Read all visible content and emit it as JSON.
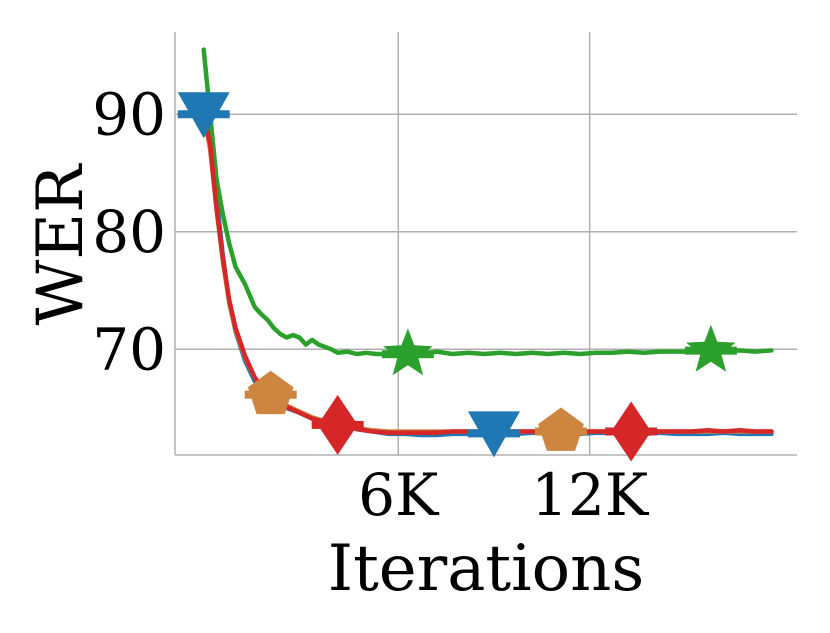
{
  "chart_data": {
    "type": "line",
    "xlabel": "Iterations",
    "ylabel": "WER",
    "xlim": [
      -700,
      18800
    ],
    "ylim": [
      61,
      97
    ],
    "grid": true,
    "x_ticks": [
      {
        "value": 6300,
        "label": "6K"
      },
      {
        "value": 12300,
        "label": "12K"
      }
    ],
    "y_ticks": [
      {
        "value": 70,
        "label": "70"
      },
      {
        "value": 80,
        "label": "80"
      },
      {
        "value": 90,
        "label": "90"
      }
    ],
    "series": [
      {
        "color": "#1f77b4",
        "marker": "triangle-down",
        "marker_x": [
          200,
          9300
        ],
        "x": [
          200,
          400,
          600,
          800,
          1000,
          1200,
          1500,
          1800,
          2100,
          2400,
          2800,
          3200,
          3600,
          4000,
          4500,
          5000,
          5500,
          6000,
          6500,
          7000,
          7500,
          8000,
          8500,
          9000,
          9500,
          10000,
          10500,
          11000,
          11500,
          12000,
          12500,
          13000,
          13500,
          14000,
          14500,
          15000,
          15500,
          16000,
          16500,
          17000,
          17500,
          18000
        ],
        "y": [
          90,
          88,
          83,
          78,
          74,
          71.5,
          69,
          67.3,
          66.3,
          65.6,
          65,
          64.6,
          64.1,
          63.8,
          63.5,
          63.2,
          63,
          62.8,
          62.8,
          62.7,
          62.7,
          62.8,
          62.8,
          62.9,
          62.8,
          62.8,
          62.9,
          62.9,
          62.8,
          62.8,
          62.9,
          62.9,
          62.8,
          62.8,
          62.9,
          62.8,
          62.8,
          62.8,
          62.9,
          62.8,
          62.8,
          62.8
        ]
      },
      {
        "color": "#cd853f",
        "marker": "pentagon",
        "marker_x": [
          2300,
          11400
        ],
        "x": [
          200,
          400,
          600,
          800,
          1000,
          1200,
          1500,
          1800,
          2100,
          2400,
          2800,
          3200,
          3600,
          4000,
          4500,
          5000,
          5500,
          6000,
          6500,
          7000,
          7500,
          8000,
          8500,
          9000,
          9500,
          10000,
          10500,
          11000,
          11500,
          12000,
          12500,
          13000,
          13500,
          14000,
          14500,
          15000,
          15500,
          16000,
          16500,
          17000,
          17500,
          18000
        ],
        "y": [
          90,
          87,
          82,
          77.5,
          74,
          71.6,
          69.3,
          67.6,
          66.6,
          65.9,
          65.2,
          64.7,
          64.2,
          63.9,
          63.6,
          63.3,
          63.1,
          63,
          63,
          63,
          63,
          63,
          63,
          63,
          63,
          63,
          63,
          63,
          63,
          63,
          63,
          63,
          63,
          63,
          63,
          63,
          63,
          63,
          63,
          63,
          63,
          63
        ]
      },
      {
        "color": "#2ca02c",
        "marker": "star",
        "marker_x": [
          6600,
          16100
        ],
        "x": [
          200,
          400,
          600,
          800,
          1000,
          1200,
          1500,
          1800,
          2000,
          2200,
          2400,
          2600,
          2800,
          3000,
          3200,
          3400,
          3600,
          3800,
          4000,
          4200,
          4400,
          4700,
          5000,
          5300,
          5600,
          5900,
          6200,
          6500,
          7000,
          7500,
          8000,
          8500,
          9000,
          9500,
          10000,
          10500,
          11000,
          11500,
          12000,
          12500,
          13000,
          13500,
          14000,
          14500,
          15000,
          15500,
          16000,
          16500,
          17000,
          17500,
          18000
        ],
        "y": [
          95.5,
          90,
          84.5,
          81.5,
          79,
          77,
          75.5,
          73.6,
          73,
          72.5,
          71.8,
          71.3,
          71,
          71.2,
          71,
          70.4,
          70.8,
          70.4,
          70.2,
          70,
          69.7,
          69.8,
          69.6,
          69.7,
          69.6,
          69.6,
          69.5,
          69.6,
          69.5,
          69.8,
          69.6,
          69.7,
          69.6,
          69.7,
          69.6,
          69.7,
          69.6,
          69.7,
          69.6,
          69.7,
          69.7,
          69.8,
          69.7,
          69.8,
          69.8,
          69.8,
          69.9,
          69.8,
          69.9,
          69.8,
          69.9
        ]
      },
      {
        "color": "#d62728",
        "marker": "diamond",
        "marker_x": [
          4400,
          13600
        ],
        "x": [
          200,
          400,
          600,
          800,
          1000,
          1200,
          1500,
          1800,
          2100,
          2400,
          2800,
          3200,
          3600,
          4000,
          4500,
          5000,
          5500,
          6000,
          6500,
          7000,
          7500,
          8000,
          8500,
          9000,
          9500,
          10000,
          10500,
          11000,
          11500,
          12000,
          12500,
          13000,
          13500,
          14000,
          14500,
          15000,
          15500,
          16000,
          16500,
          17000,
          17500,
          18000
        ],
        "y": [
          90,
          87.5,
          82,
          77.8,
          74.2,
          71.8,
          69.4,
          67.6,
          66.5,
          65.8,
          65.1,
          64.6,
          64.1,
          63.8,
          63.5,
          63.2,
          63,
          62.9,
          62.9,
          62.9,
          62.9,
          63,
          63,
          63,
          63,
          63,
          63,
          63,
          63,
          63,
          63,
          63,
          63,
          63,
          63,
          63,
          63,
          63.1,
          63,
          63.1,
          63,
          63
        ]
      }
    ]
  }
}
